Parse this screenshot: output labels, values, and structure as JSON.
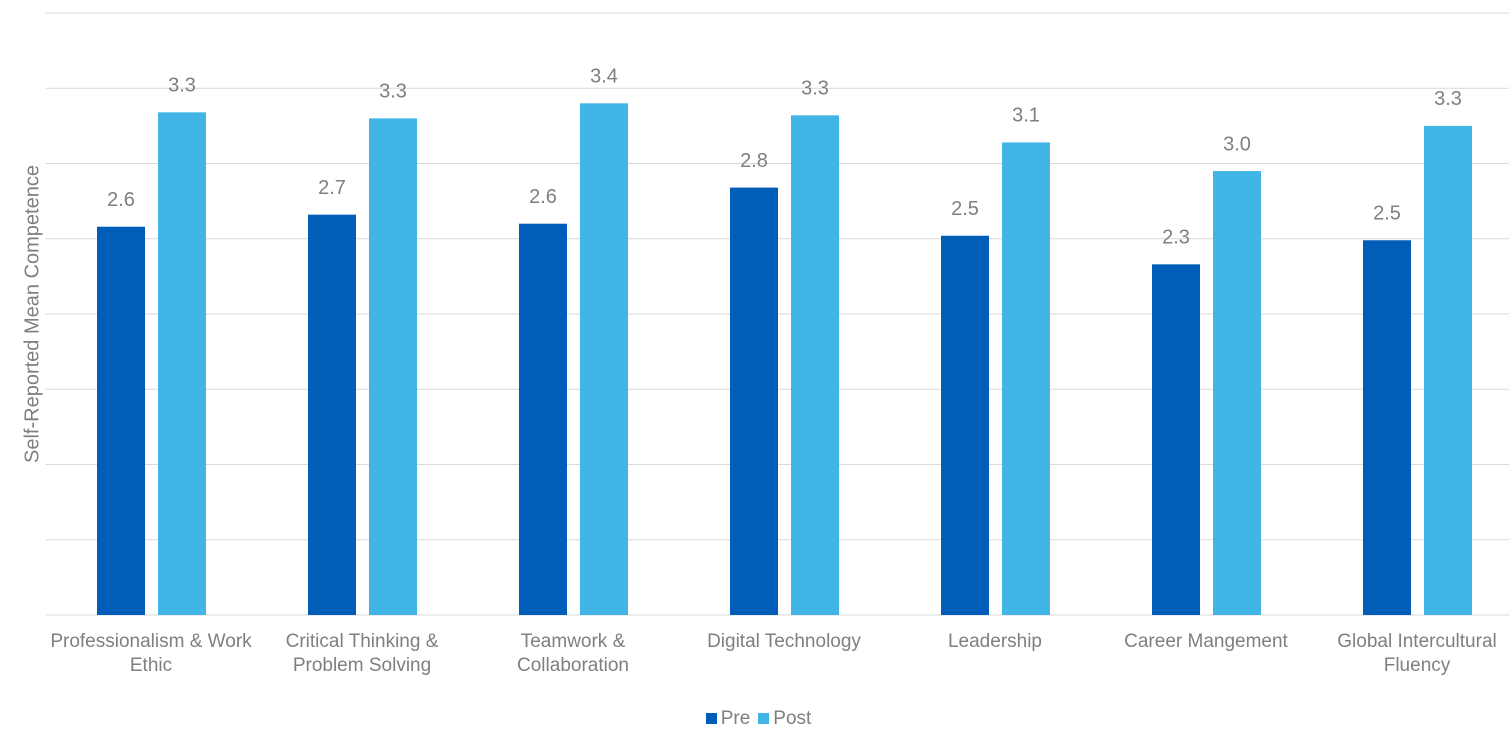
{
  "chart_data": {
    "type": "bar",
    "y_label": "Self-Reported Mean Competence",
    "categories": [
      "Professionalism & Work Ethic",
      "Critical Thinking & Problem Solving",
      "Teamwork & Collaboration",
      "Digital Technology",
      "Leadership",
      "Career Mangement",
      "Global Intercultural Fluency"
    ],
    "series": [
      {
        "name": "Pre",
        "color": "#005eb8",
        "values": [
          2.58,
          2.66,
          2.6,
          2.84,
          2.52,
          2.33,
          2.49
        ],
        "value_labels": [
          "2.6",
          "2.7",
          "2.6",
          "2.8",
          "2.5",
          "2.3",
          "2.5"
        ]
      },
      {
        "name": "Post",
        "color": "#41b6e6",
        "values": [
          3.34,
          3.3,
          3.4,
          3.32,
          3.14,
          2.95,
          3.25
        ],
        "value_labels": [
          "3.3",
          "3.3",
          "3.4",
          "3.3",
          "3.1",
          "3.0",
          "3.3"
        ]
      }
    ],
    "ylim": [
      0,
      4
    ],
    "yticks": [
      0,
      0.5,
      1,
      1.5,
      2,
      2.5,
      3,
      3.5,
      4
    ],
    "grid": true,
    "legend": "bottom"
  }
}
